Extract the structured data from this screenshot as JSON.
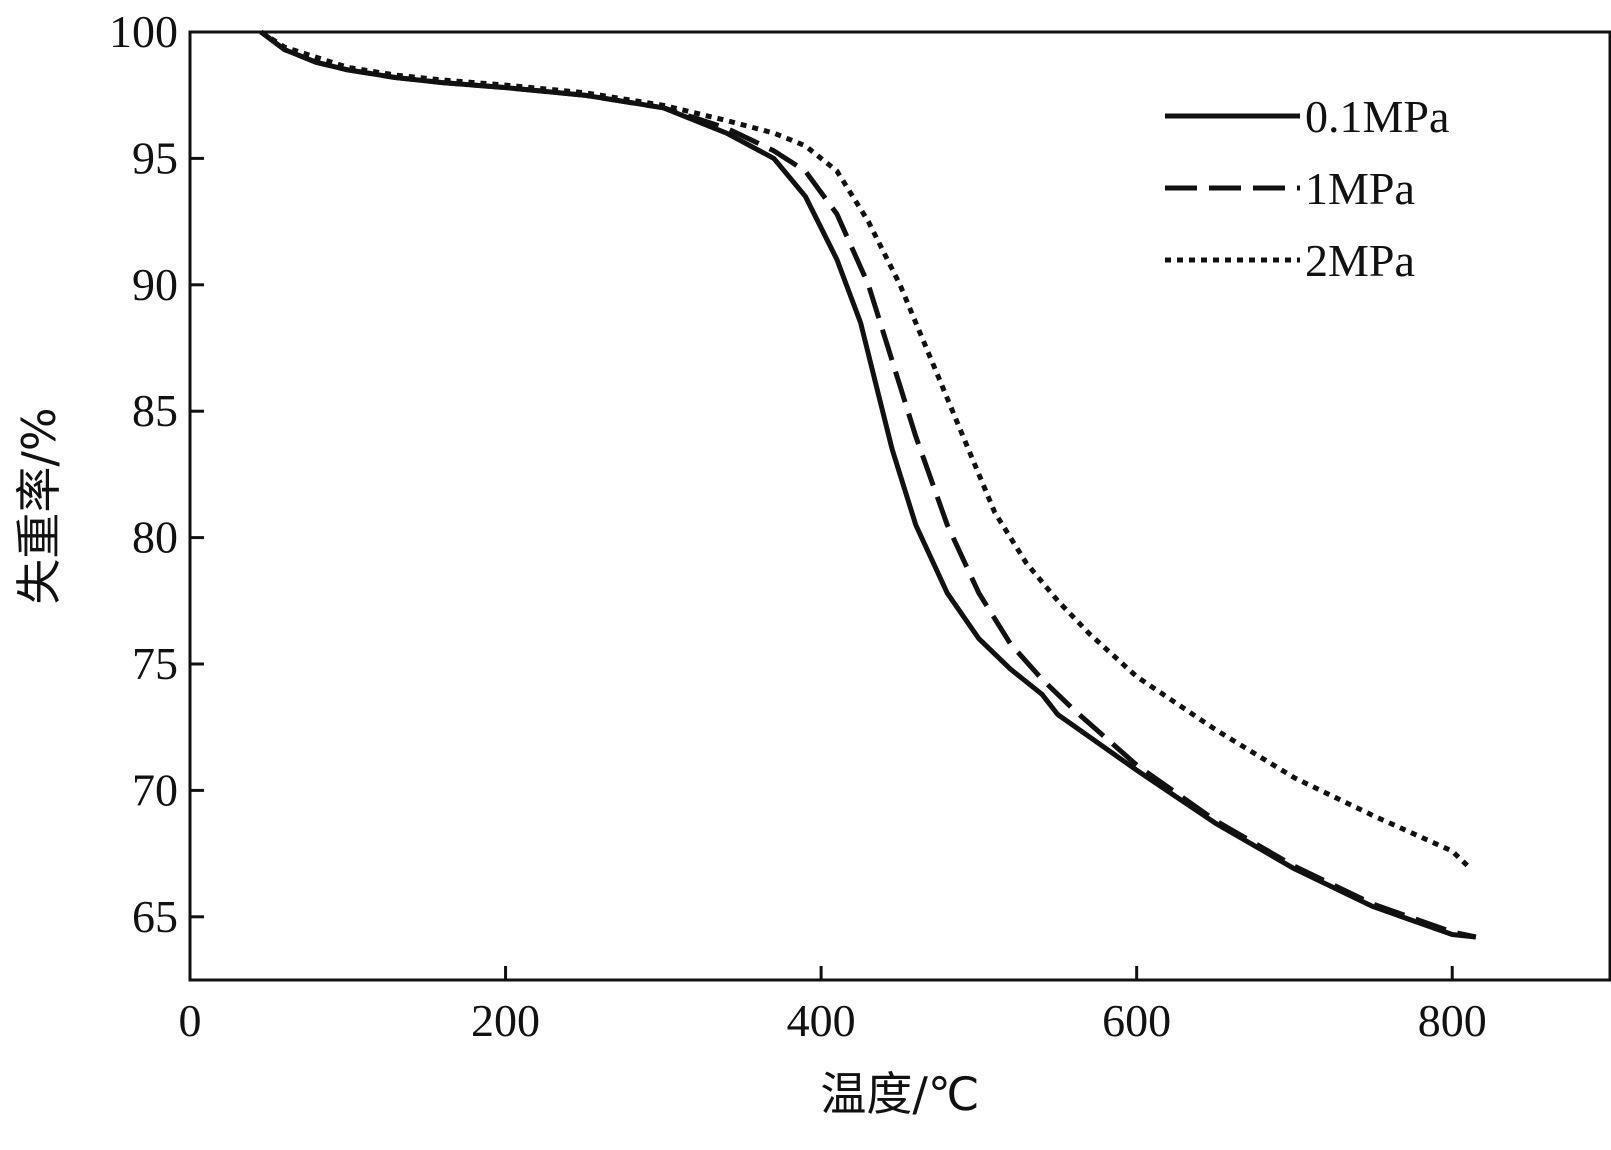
{
  "chart_data": {
    "type": "line",
    "title": "",
    "xlabel": "温度/℃",
    "ylabel": "失重率/%",
    "xlim": [
      0,
      900
    ],
    "ylim": [
      62.5,
      100
    ],
    "xticks": [
      0,
      200,
      400,
      600,
      800
    ],
    "yticks": [
      65,
      70,
      75,
      80,
      85,
      90,
      95,
      100
    ],
    "xtick_labels": [
      "0",
      "200",
      "400",
      "600",
      "800"
    ],
    "ytick_labels": [
      "65",
      "70",
      "75",
      "80",
      "85",
      "90",
      "95",
      "100"
    ],
    "legend_position": "top-right",
    "grid": false,
    "series": [
      {
        "name": "0.1MPa",
        "style": "solid",
        "color": "#111111",
        "x": [
          45,
          60,
          80,
          100,
          130,
          160,
          200,
          250,
          300,
          340,
          370,
          390,
          410,
          425,
          435,
          445,
          460,
          480,
          500,
          520,
          540,
          550,
          600,
          650,
          700,
          750,
          800,
          815
        ],
        "y": [
          100,
          99.3,
          98.8,
          98.5,
          98.2,
          98.0,
          97.8,
          97.5,
          97.0,
          96.0,
          95.0,
          93.5,
          91.0,
          88.5,
          86.0,
          83.5,
          80.5,
          77.8,
          76.0,
          74.8,
          73.8,
          73.0,
          70.8,
          68.7,
          66.9,
          65.4,
          64.3,
          64.2
        ]
      },
      {
        "name": "1MPa",
        "style": "dashed",
        "color": "#111111",
        "x": [
          45,
          60,
          80,
          100,
          130,
          160,
          200,
          250,
          300,
          340,
          370,
          390,
          410,
          430,
          445,
          460,
          480,
          500,
          520,
          540,
          560,
          600,
          650,
          700,
          750,
          800,
          815
        ],
        "y": [
          100,
          99.3,
          98.8,
          98.5,
          98.2,
          98.0,
          97.8,
          97.5,
          97.0,
          96.2,
          95.3,
          94.5,
          92.8,
          90.0,
          87.0,
          84.0,
          80.5,
          77.8,
          75.8,
          74.4,
          73.2,
          71.0,
          68.8,
          67.0,
          65.5,
          64.4,
          64.2
        ]
      },
      {
        "name": "2MPa",
        "style": "dotted",
        "color": "#111111",
        "x": [
          45,
          60,
          80,
          100,
          130,
          160,
          200,
          250,
          300,
          340,
          370,
          390,
          410,
          430,
          450,
          470,
          490,
          510,
          530,
          550,
          570,
          600,
          650,
          700,
          750,
          800,
          810
        ],
        "y": [
          100,
          99.4,
          99.0,
          98.6,
          98.3,
          98.1,
          97.9,
          97.6,
          97.1,
          96.5,
          96.0,
          95.5,
          94.5,
          92.5,
          90.0,
          87.0,
          84.0,
          81.0,
          79.0,
          77.5,
          76.2,
          74.5,
          72.4,
          70.5,
          69.0,
          67.6,
          67.0
        ]
      }
    ]
  }
}
